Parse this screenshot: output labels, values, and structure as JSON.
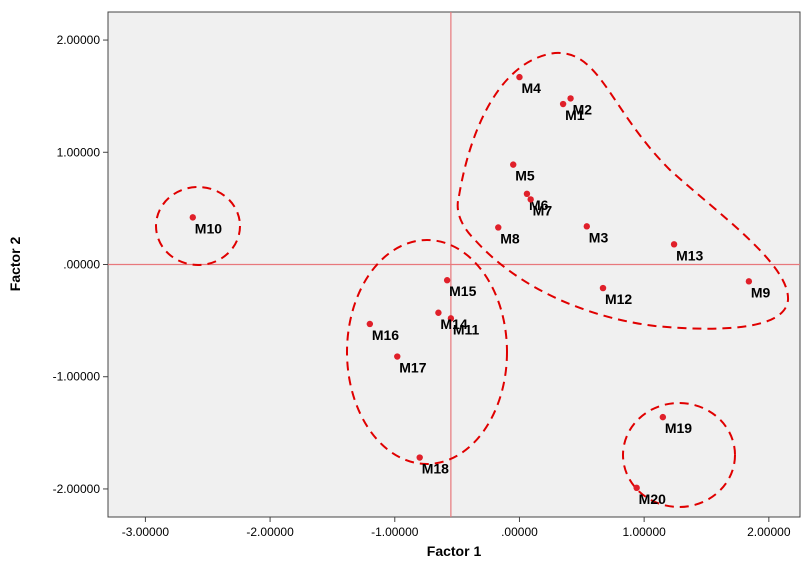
{
  "chart_data": {
    "type": "scatter",
    "xlabel": "Factor 1",
    "ylabel": "Factor 2",
    "xlim": [
      -3.3,
      2.25
    ],
    "ylim": [
      -2.25,
      2.25
    ],
    "x_ticks": [
      {
        "value": -3,
        "label": "-3.00000"
      },
      {
        "value": -2,
        "label": "-2.00000"
      },
      {
        "value": -1,
        "label": "-1.00000"
      },
      {
        "value": 0,
        "label": ".00000"
      },
      {
        "value": 1,
        "label": "1.00000"
      },
      {
        "value": 2,
        "label": "2.00000"
      }
    ],
    "y_ticks": [
      {
        "value": 2,
        "label": "2.00000"
      },
      {
        "value": 1,
        "label": "1.00000"
      },
      {
        "value": 0,
        "label": ".00000"
      },
      {
        "value": -1,
        "label": "-1.00000"
      },
      {
        "value": -2,
        "label": "-2.00000"
      }
    ],
    "reference_lines": {
      "x": -0.55,
      "y": 0
    },
    "points": [
      {
        "label": "M1",
        "x": 0.35,
        "y": 1.43
      },
      {
        "label": "M2",
        "x": 0.41,
        "y": 1.48
      },
      {
        "label": "M3",
        "x": 0.54,
        "y": 0.34
      },
      {
        "label": "M4",
        "x": 0.0,
        "y": 1.67
      },
      {
        "label": "M5",
        "x": -0.05,
        "y": 0.89
      },
      {
        "label": "M6",
        "x": 0.06,
        "y": 0.63
      },
      {
        "label": "M7",
        "x": 0.09,
        "y": 0.58
      },
      {
        "label": "M8",
        "x": -0.17,
        "y": 0.33
      },
      {
        "label": "M9",
        "x": 1.84,
        "y": -0.15
      },
      {
        "label": "M10",
        "x": -2.62,
        "y": 0.42
      },
      {
        "label": "M11",
        "x": -0.55,
        "y": -0.48
      },
      {
        "label": "M12",
        "x": 0.67,
        "y": -0.21
      },
      {
        "label": "M13",
        "x": 1.24,
        "y": 0.18
      },
      {
        "label": "M14",
        "x": -0.65,
        "y": -0.43
      },
      {
        "label": "M15",
        "x": -0.58,
        "y": -0.14
      },
      {
        "label": "M16",
        "x": -1.2,
        "y": -0.53
      },
      {
        "label": "M17",
        "x": -0.98,
        "y": -0.82
      },
      {
        "label": "M18",
        "x": -0.8,
        "y": -1.72
      },
      {
        "label": "M19",
        "x": 1.15,
        "y": -1.36
      },
      {
        "label": "M20",
        "x": 0.94,
        "y": -1.99
      }
    ],
    "grid": false,
    "point_color": "#e0202a",
    "reference_line_color": "#e8787c",
    "cluster_outline_color": "#e00000",
    "plot_background": "#f0f0f0"
  }
}
